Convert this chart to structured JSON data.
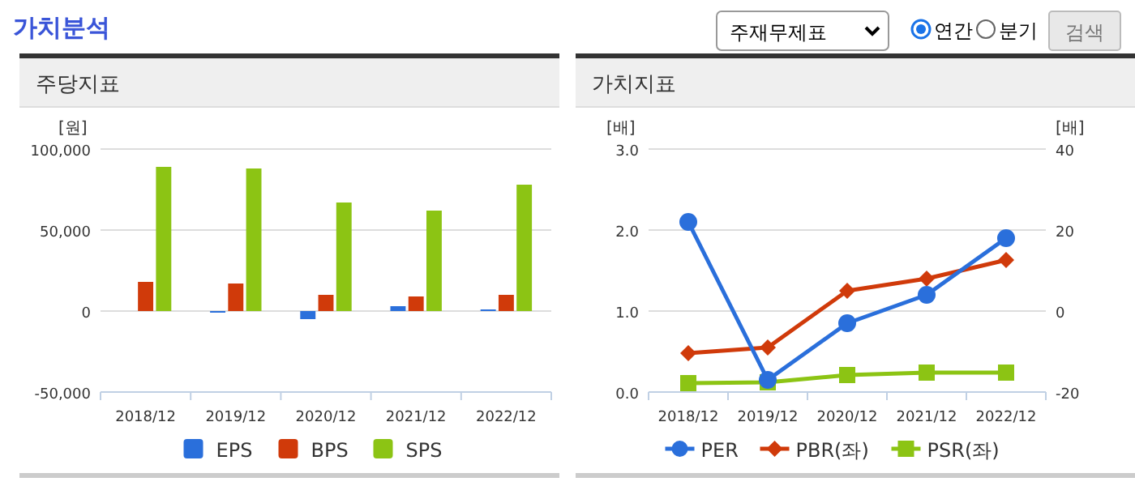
{
  "chart_data": [
    {
      "type": "other",
      "title": "가치분석",
      "annotations": [
        "주재무제표",
        "연간",
        "분기",
        "검색"
      ]
    },
    {
      "type": "bar",
      "title": "주당지표",
      "ylabel": "[원]",
      "categories": [
        "2018/12",
        "2019/12",
        "2020/12",
        "2021/12",
        "2022/12"
      ],
      "ylim": [
        -50000,
        100000
      ],
      "yticks": [
        {
          "value": -50000,
          "label": "-50,000"
        },
        {
          "value": 0,
          "label": "0"
        },
        {
          "value": 50000,
          "label": "50,000"
        },
        {
          "value": 100000,
          "label": "100,000"
        }
      ],
      "grid": "y",
      "legend": "bottom",
      "series": [
        {
          "name": "EPS",
          "color": "#2a6fdb",
          "values": [
            0,
            -1000,
            -5000,
            3000,
            1000
          ]
        },
        {
          "name": "BPS",
          "color": "#d03a0a",
          "values": [
            18000,
            17000,
            10000,
            9000,
            10000
          ]
        },
        {
          "name": "SPS",
          "color": "#8cc414",
          "values": [
            89000,
            88000,
            67000,
            62000,
            78000
          ]
        }
      ]
    },
    {
      "type": "line",
      "title": "가치지표",
      "ylabel": "[배]",
      "y2label": "[배]",
      "categories": [
        "2018/12",
        "2019/12",
        "2020/12",
        "2021/12",
        "2022/12"
      ],
      "ylim": [
        0,
        3
      ],
      "yticks": [
        {
          "value": 0,
          "label": "0.0"
        },
        {
          "value": 1,
          "label": "1.0"
        },
        {
          "value": 2,
          "label": "2.0"
        },
        {
          "value": 3,
          "label": "3.0"
        }
      ],
      "y2lim": [
        -20,
        40
      ],
      "y2ticks": [
        -20,
        0,
        20,
        40
      ],
      "grid": "y",
      "legend": "bottom",
      "series": [
        {
          "name": "PER",
          "color": "#2a6fdb",
          "axis": "y2",
          "marker": "circle",
          "values": [
            22,
            -17,
            -3,
            4,
            18
          ]
        },
        {
          "name": "PBR(좌)",
          "color": "#d03a0a",
          "marker": "diamond",
          "values": [
            0.48,
            0.55,
            1.25,
            1.4,
            1.63
          ]
        },
        {
          "name": "PSR(좌)",
          "color": "#8cc414",
          "marker": "square",
          "values": [
            0.11,
            0.12,
            0.21,
            0.24,
            0.24
          ]
        }
      ]
    }
  ]
}
